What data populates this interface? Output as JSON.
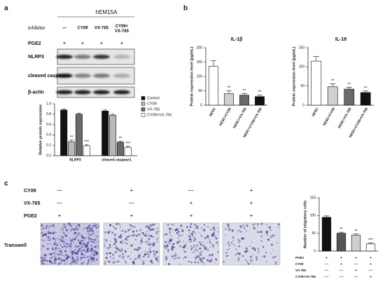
{
  "panel_labels": [
    "a",
    "b",
    "c"
  ],
  "panel_a": {
    "cell_line": "hEM15A",
    "row_labels": [
      "inhibitor",
      "PGE2"
    ],
    "conditions": [
      "—",
      "CY09",
      "VX-765",
      "CY09+ VX-765"
    ],
    "pge2": [
      "+",
      "+",
      "+",
      "+"
    ],
    "blots": [
      "NLRP3",
      "cleaved caspase1",
      "β-actin"
    ]
  },
  "panel_c": {
    "rows": [
      {
        "label": "CY09",
        "values": [
          "—",
          "+",
          "—",
          "+"
        ]
      },
      {
        "label": "VX-765",
        "values": [
          "—",
          "—",
          "+",
          "+"
        ]
      },
      {
        "label": "PGE2",
        "values": [
          "+",
          "+",
          "+",
          "+"
        ]
      }
    ],
    "image_label": "Transwell"
  },
  "chart_data": [
    {
      "type": "bar",
      "ylabel": "Relative protein expression",
      "categories": [
        "NLRP3",
        "cleaved caspase1"
      ],
      "series": [
        {
          "name": "Control",
          "color": "#111111",
          "values": [
            0.88,
            0.86
          ],
          "errors": [
            0.02,
            0.02
          ]
        },
        {
          "name": "CY09",
          "color": "#b8b8b8",
          "values": [
            0.27,
            0.78
          ],
          "errors": [
            0.03,
            0.02
          ],
          "annotations": [
            "**",
            null
          ]
        },
        {
          "name": "VX-765",
          "color": "#6a6a6a",
          "values": [
            0.8,
            0.26
          ],
          "errors": [
            0.02,
            0.02
          ],
          "annotations": [
            null,
            "**"
          ]
        },
        {
          "name": "CY09+VX-765",
          "color": "#ffffff",
          "values": [
            0.19,
            0.16
          ],
          "errors": [
            0.02,
            0.02
          ],
          "annotations": [
            "***",
            "***"
          ]
        }
      ],
      "ylim": [
        0,
        1.0
      ],
      "yticks": [
        {
          "value": 0,
          "label": "0.0"
        },
        {
          "value": 0.2,
          "label": "0.2"
        },
        {
          "value": 0.4,
          "label": "0.4"
        },
        {
          "value": 0.6,
          "label": "0.6"
        },
        {
          "value": 0.8,
          "label": "0.8"
        },
        {
          "value": 1.0,
          "label": "1.0"
        }
      ],
      "legend": "right"
    },
    {
      "type": "bar",
      "title": "IL-1β",
      "ylabel": "Protein expression level (pg/mL)",
      "categories": [
        "hESC",
        "hESC+CY09",
        "hESC+VX-765",
        "hESC+CY09+VX-765"
      ],
      "values": [
        135,
        40,
        35,
        30
      ],
      "errors": [
        20,
        10,
        6,
        5
      ],
      "colors": [
        "#ffffff",
        "#d0d0d0",
        "#6a6a6a",
        "#111111"
      ],
      "annotations": [
        null,
        "**",
        "**",
        "**"
      ],
      "ylim": [
        0,
        200
      ],
      "yticks": [
        0,
        50,
        100,
        150,
        200
      ]
    },
    {
      "type": "bar",
      "title": "IL-18",
      "ylabel": "Protein expression level (pg/mL)",
      "categories": [
        "hESC",
        "hESC+CY09",
        "hESC+VX-765",
        "hESC+CY09+VX-765"
      ],
      "values": [
        115,
        48,
        42,
        33
      ],
      "errors": [
        12,
        8,
        5,
        4
      ],
      "colors": [
        "#ffffff",
        "#d0d0d0",
        "#6a6a6a",
        "#111111"
      ],
      "annotations": [
        null,
        "**",
        "**",
        "**"
      ],
      "ylim": [
        0,
        150
      ],
      "yticks": [
        0,
        50,
        100,
        150
      ]
    },
    {
      "type": "bar",
      "ylabel": "Number of migratory cells",
      "values": [
        95,
        50,
        45,
        20
      ],
      "errors": [
        4,
        3,
        3,
        3
      ],
      "colors": [
        "#111111",
        "#555555",
        "#cfcfcf",
        "#ffffff"
      ],
      "annotations": [
        null,
        "**",
        "**",
        "***"
      ],
      "ylim": [
        0,
        150
      ],
      "yticks": [
        0,
        50,
        100,
        150
      ],
      "condition_rows": [
        {
          "label": "PGE2",
          "values": [
            "+",
            "+",
            "+",
            "+"
          ]
        },
        {
          "label": "CY09",
          "values": [
            "—",
            "+",
            "—",
            "+"
          ]
        },
        {
          "label": "VX-765",
          "values": [
            "—",
            "—",
            "+",
            "—"
          ]
        },
        {
          "label": "CY09+VX-765",
          "values": [
            "—",
            "—",
            "—",
            "+"
          ]
        }
      ]
    }
  ]
}
